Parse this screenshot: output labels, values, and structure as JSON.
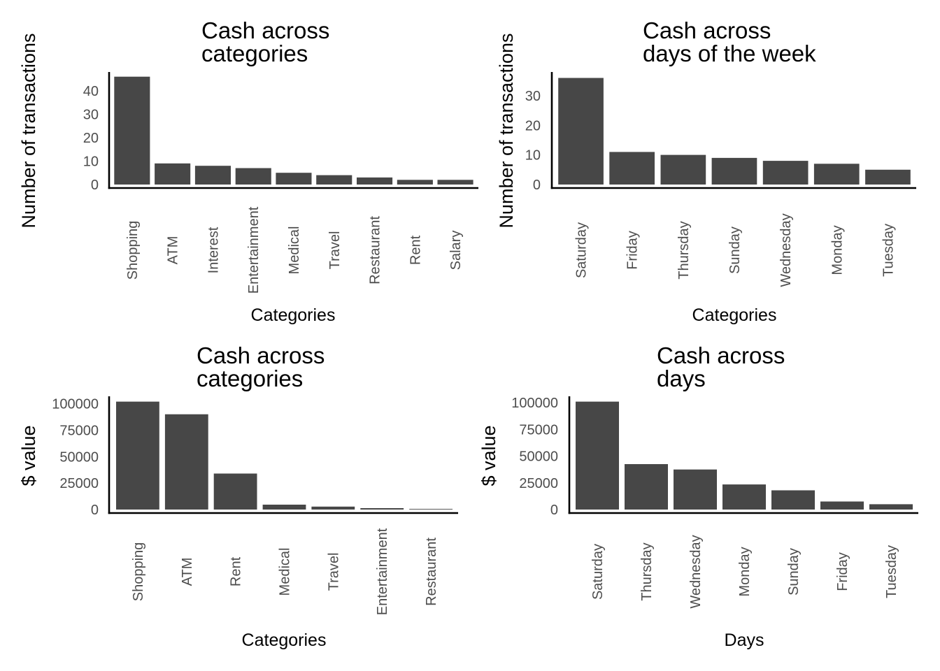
{
  "colors": {
    "bar": "#474747",
    "axis": "#000000",
    "tick_label": "#4d4d4d",
    "text": "#000000",
    "background": "#ffffff"
  },
  "chart_data": [
    {
      "type": "bar",
      "title": "Cash across\ncategories",
      "xlabel": "Categories",
      "ylabel": "Number of transactions",
      "categories": [
        "Shopping",
        "ATM",
        "Interest",
        "Entertainment",
        "Medical",
        "Travel",
        "Restaurant",
        "Rent",
        "Salary"
      ],
      "values": [
        46,
        9,
        8,
        7,
        5,
        4,
        3,
        2,
        2
      ],
      "ylim": [
        0,
        48
      ],
      "yticks": [
        0,
        10,
        20,
        30,
        40
      ],
      "ytick_labels": [
        "0",
        "10",
        "20",
        "30",
        "40"
      ],
      "grid": false
    },
    {
      "type": "bar",
      "title": "Cash across\ndays of the week",
      "xlabel": "Categories",
      "ylabel": "Number of transactions",
      "categories": [
        "Saturday",
        "Friday",
        "Thursday",
        "Sunday",
        "Wednesday",
        "Monday",
        "Tuesday"
      ],
      "values": [
        36,
        11,
        10,
        9,
        8,
        7,
        5
      ],
      "ylim": [
        0,
        38
      ],
      "yticks": [
        0,
        10,
        20,
        30
      ],
      "ytick_labels": [
        "0",
        "10",
        "20",
        "30"
      ],
      "grid": false
    },
    {
      "type": "bar",
      "title": "Cash across\ncategories",
      "xlabel": "Categories",
      "ylabel": "$ value",
      "categories": [
        "Shopping",
        "ATM",
        "Rent",
        "Medical",
        "Travel",
        "Entertainment",
        "Restaurant"
      ],
      "values": [
        102000,
        90000,
        34000,
        4600,
        2800,
        1300,
        600
      ],
      "ylim": [
        0,
        107000
      ],
      "yticks": [
        0,
        25000,
        50000,
        75000,
        100000
      ],
      "ytick_labels": [
        "0",
        "25000",
        "50000",
        "75000",
        "100000"
      ],
      "grid": false
    },
    {
      "type": "bar",
      "title": "Cash across\ndays",
      "xlabel": "Days",
      "ylabel": "$ value",
      "categories": [
        "Saturday",
        "Thursday",
        "Wednesday",
        "Monday",
        "Sunday",
        "Friday",
        "Tuesday"
      ],
      "values": [
        101000,
        42500,
        37500,
        23500,
        18000,
        7500,
        5000
      ],
      "ylim": [
        0,
        106000
      ],
      "yticks": [
        0,
        25000,
        50000,
        75000,
        100000
      ],
      "ytick_labels": [
        "0",
        "25000",
        "50000",
        "75000",
        "100000"
      ],
      "grid": false
    }
  ]
}
